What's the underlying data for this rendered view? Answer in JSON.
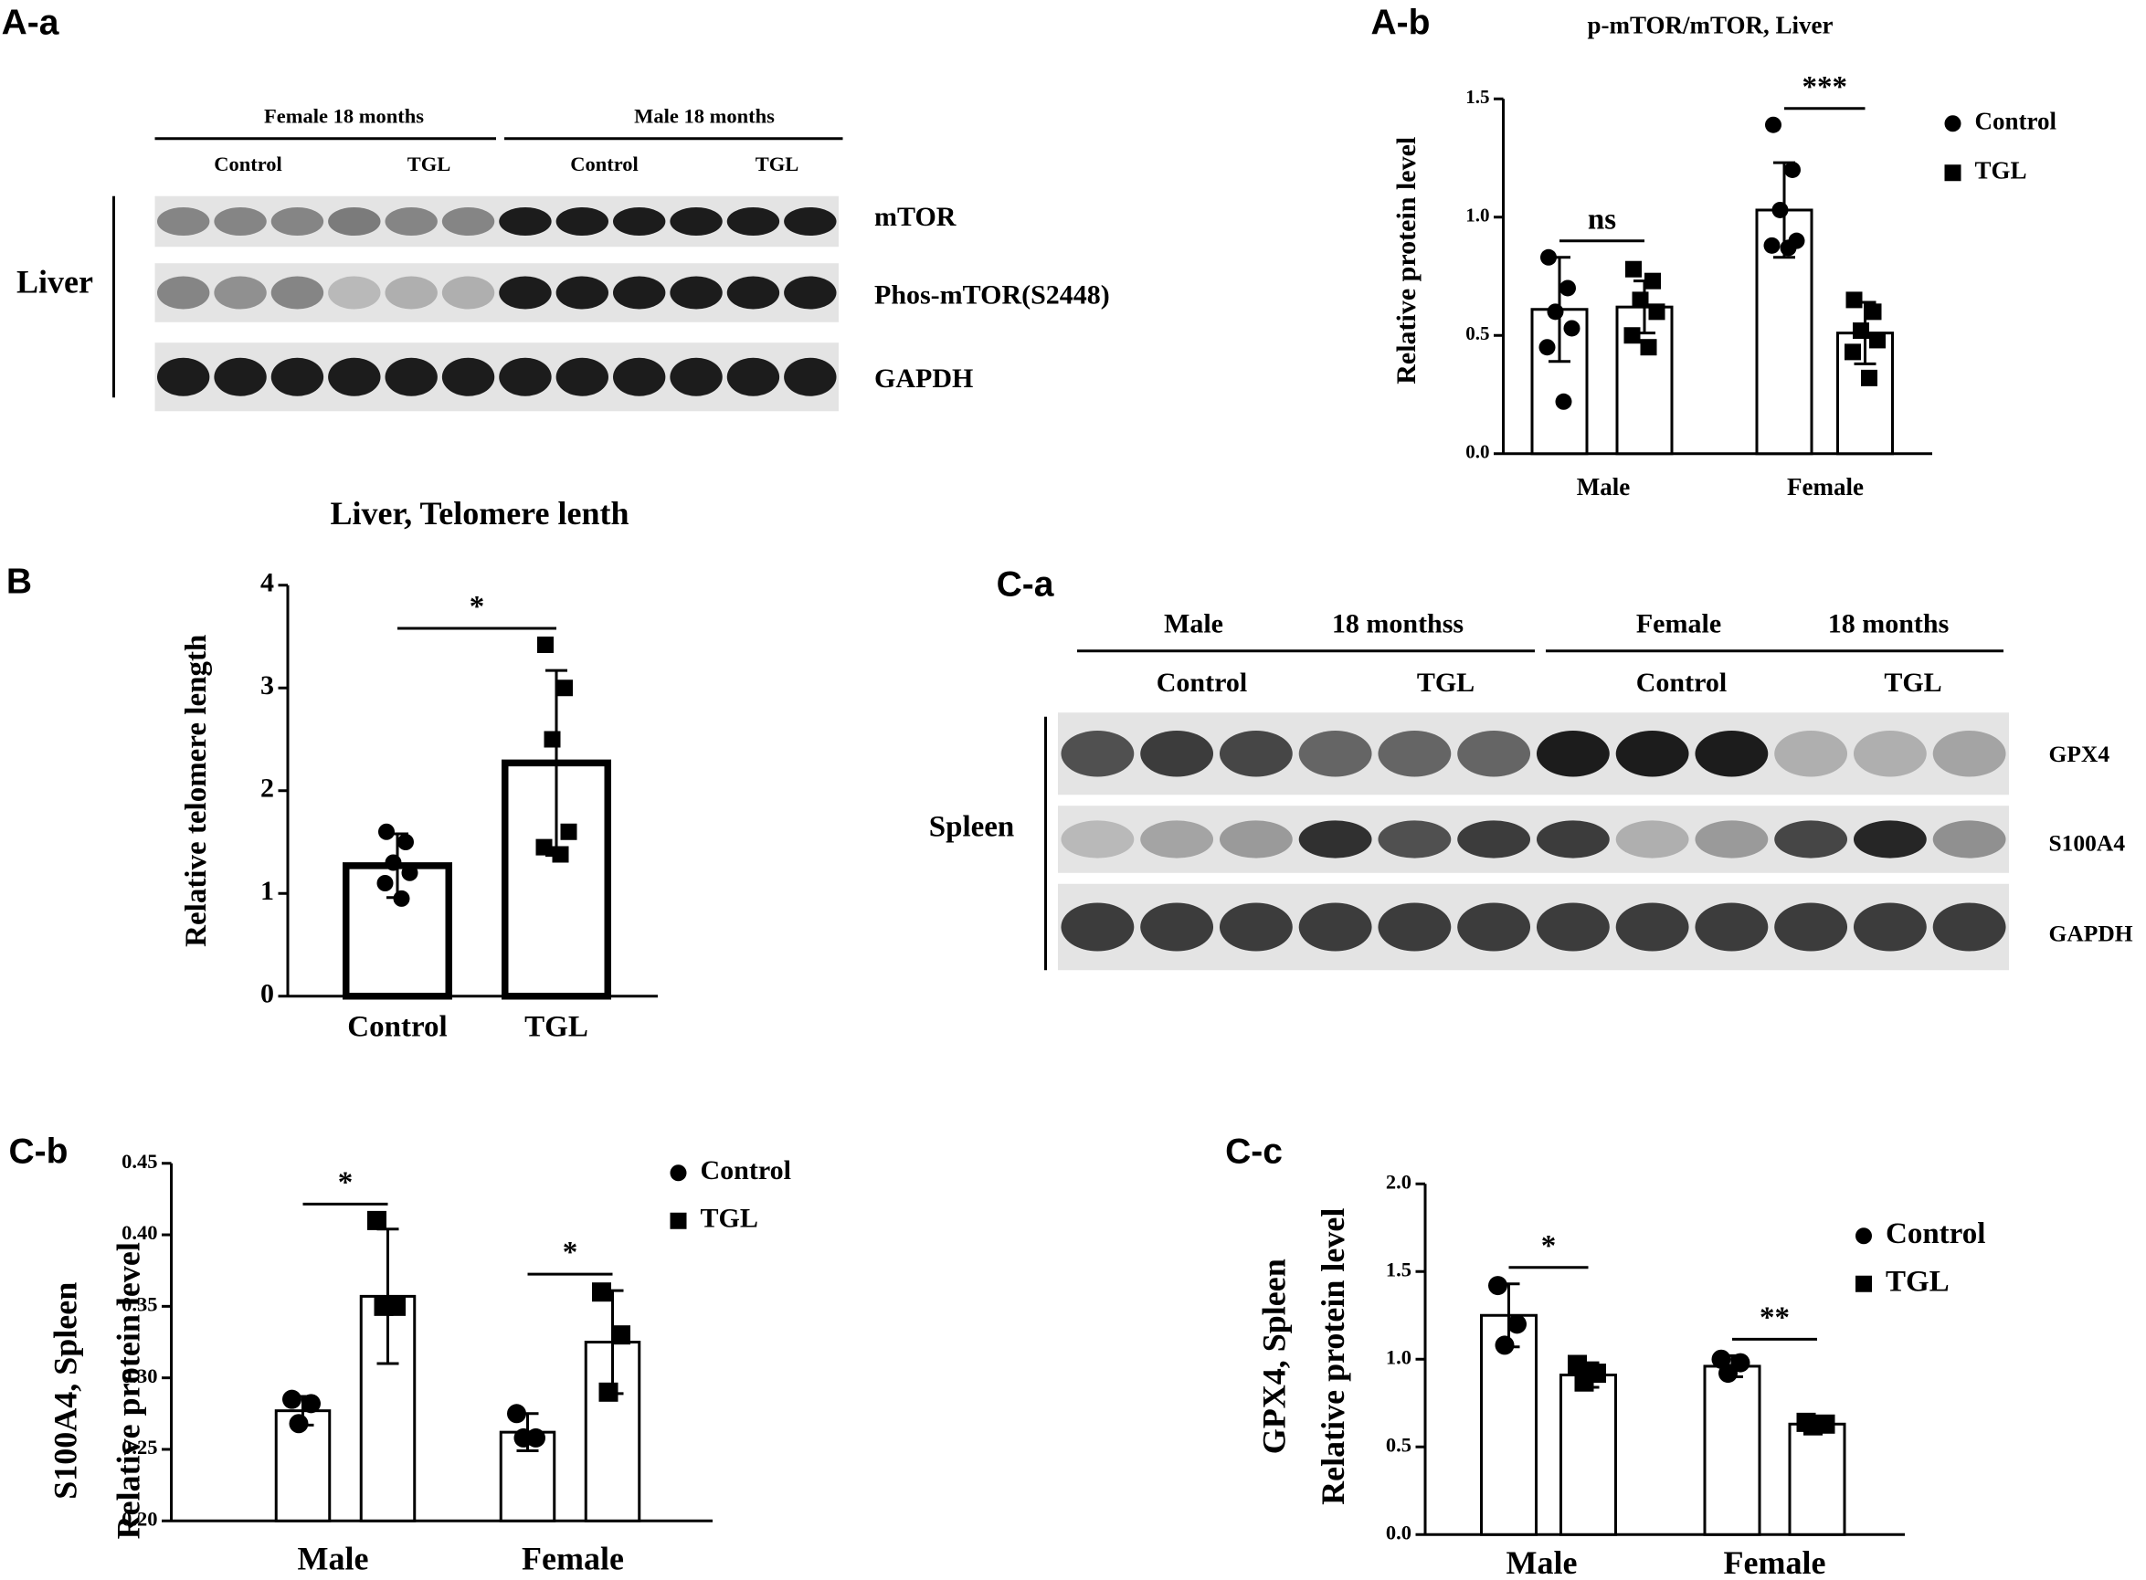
{
  "panel_labels": [
    "A-a",
    "A-b",
    "B",
    "C-a",
    "C-b",
    "C-c"
  ],
  "blots": [
    {
      "headers": [
        "Female  18 months",
        "Male  18 months"
      ],
      "groups": [
        "Control",
        "TGL",
        "Control",
        "TGL"
      ],
      "tissue": "Liver",
      "bands": [
        "mTOR",
        "Phos-mTOR(S2448)",
        "GAPDH"
      ]
    },
    {
      "headers": [
        "Male",
        "18 monthss",
        "Female",
        "18 months"
      ],
      "groups": [
        "Control",
        "TGL",
        "Control",
        "TGL"
      ],
      "tissue": "Spleen",
      "bands": [
        "GPX4",
        "S100A4",
        "GAPDH"
      ]
    }
  ],
  "chart_data": [
    {
      "type": "bar",
      "title": "p-mTOR/mTOR, Liver",
      "ylabel": "Relative protein level",
      "categories": [
        "Male",
        "Female"
      ],
      "series": [
        {
          "name": "Control",
          "marker": "circle",
          "values": [
            0.61,
            1.03
          ],
          "errors": [
            0.22,
            0.2
          ],
          "points": [
            [
              0.83,
              0.7,
              0.6,
              0.53,
              0.45,
              0.22
            ],
            [
              1.39,
              1.2,
              1.03,
              0.9,
              0.88,
              0.87
            ]
          ]
        },
        {
          "name": "TGL",
          "marker": "square",
          "values": [
            0.62,
            0.51
          ],
          "errors": [
            0.11,
            0.13
          ],
          "points": [
            [
              0.78,
              0.73,
              0.65,
              0.6,
              0.5,
              0.45
            ],
            [
              0.65,
              0.6,
              0.52,
              0.48,
              0.43,
              0.32
            ]
          ]
        }
      ],
      "significance": [
        "ns",
        "***"
      ],
      "ylim": [
        0,
        1.5
      ],
      "yticks": [
        {
          "value": 0,
          "label": "0.0"
        },
        {
          "value": 0.5,
          "label": "0.5"
        },
        {
          "value": 1,
          "label": "1.0"
        },
        {
          "value": 1.5,
          "label": "1.5"
        }
      ]
    },
    {
      "type": "bar",
      "title": "Liver, Telomere lenth",
      "ylabel": "Relative telomere length",
      "categories": [
        "Control",
        "TGL"
      ],
      "markers": [
        "circle",
        "square"
      ],
      "values": [
        1.27,
        2.27
      ],
      "errors": [
        0.31,
        0.9
      ],
      "points": [
        [
          1.6,
          1.5,
          1.3,
          1.2,
          1.1,
          0.95
        ],
        [
          3.42,
          3.0,
          2.5,
          1.6,
          1.45,
          1.38
        ]
      ],
      "significance": [
        "*"
      ],
      "ylim": [
        0,
        4
      ],
      "yticks": [
        0,
        1,
        2,
        3,
        4
      ]
    },
    {
      "type": "bar",
      "ylabel": [
        "S100A4, Spleen",
        "Relative protein level"
      ],
      "categories": [
        "Male",
        "Female"
      ],
      "series": [
        {
          "name": "Control",
          "marker": "circle",
          "values": [
            0.277,
            0.262
          ],
          "errors": [
            0.01,
            0.013
          ],
          "points": [
            [
              0.285,
              0.282,
              0.268
            ],
            [
              0.275,
              0.258,
              0.258
            ]
          ]
        },
        {
          "name": "TGL",
          "marker": "square",
          "values": [
            0.357,
            0.325
          ],
          "errors": [
            0.047,
            0.036
          ],
          "points": [
            [
              0.41,
              0.35,
              0.35
            ],
            [
              0.36,
              0.33,
              0.29
            ]
          ]
        }
      ],
      "significance": [
        "*",
        "*"
      ],
      "ylim": [
        0.2,
        0.45
      ],
      "yticks": [
        {
          "value": 0.2,
          "label": "0.20"
        },
        {
          "value": 0.25,
          "label": "0.25"
        },
        {
          "value": 0.3,
          "label": "0.30"
        },
        {
          "value": 0.35,
          "label": "0.35"
        },
        {
          "value": 0.4,
          "label": "0.40"
        },
        {
          "value": 0.45,
          "label": "0.45"
        }
      ]
    },
    {
      "type": "bar",
      "ylabel": [
        "GPX4,  Spleen",
        "Relative protein level"
      ],
      "categories": [
        "Male",
        "Female"
      ],
      "series": [
        {
          "name": "Control",
          "marker": "circle",
          "values": [
            1.25,
            0.96
          ],
          "errors": [
            0.18,
            0.06
          ],
          "points": [
            [
              1.42,
              1.2,
              1.08
            ],
            [
              1.0,
              0.98,
              0.92
            ]
          ]
        },
        {
          "name": "TGL",
          "marker": "square",
          "values": [
            0.91,
            0.63
          ],
          "errors": [
            0.07,
            0.02
          ],
          "points": [
            [
              0.97,
              0.92,
              0.87
            ],
            [
              0.64,
              0.63,
              0.62
            ]
          ]
        }
      ],
      "significance": [
        "*",
        "**"
      ],
      "ylim": [
        0,
        2
      ],
      "yticks": [
        {
          "value": 0,
          "label": "0.0"
        },
        {
          "value": 0.5,
          "label": "0.5"
        },
        {
          "value": 1,
          "label": "1.0"
        },
        {
          "value": 1.5,
          "label": "1.5"
        },
        {
          "value": 2,
          "label": "2.0"
        }
      ]
    }
  ]
}
